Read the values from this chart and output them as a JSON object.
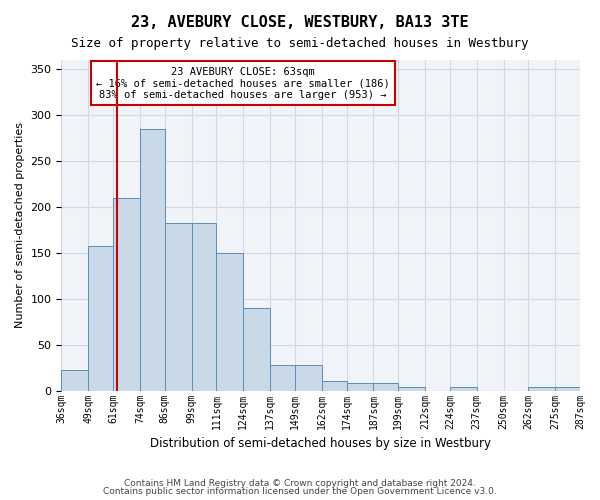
{
  "title1": "23, AVEBURY CLOSE, WESTBURY, BA13 3TE",
  "title2": "Size of property relative to semi-detached houses in Westbury",
  "xlabel": "Distribution of semi-detached houses by size in Westbury",
  "ylabel": "Number of semi-detached properties",
  "annotation_line1": "23 AVEBURY CLOSE: 63sqm",
  "annotation_line2": "← 16% of semi-detached houses are smaller (186)",
  "annotation_line3": "83% of semi-detached houses are larger (953) →",
  "footer1": "Contains HM Land Registry data © Crown copyright and database right 2024.",
  "footer2": "Contains public sector information licensed under the Open Government Licence v3.0.",
  "property_size": 63,
  "bar_color": "#c9d9e8",
  "bar_edge_color": "#5b8db8",
  "vline_color": "#cc0000",
  "annotation_box_color": "#cc0000",
  "grid_color": "#d0d8e8",
  "background_color": "#f0f4f8",
  "bin_edges": [
    36,
    49,
    61,
    74,
    86,
    99,
    111,
    124,
    137,
    149,
    162,
    174,
    187,
    199,
    212,
    224,
    237,
    250,
    262,
    275,
    287
  ],
  "bin_labels": [
    "36sqm",
    "49sqm",
    "61sqm",
    "74sqm",
    "86sqm",
    "99sqm",
    "111sqm",
    "124sqm",
    "137sqm",
    "149sqm",
    "162sqm",
    "174sqm",
    "187sqm",
    "199sqm",
    "212sqm",
    "224sqm",
    "237sqm",
    "250sqm",
    "262sqm",
    "275sqm",
    "287sqm"
  ],
  "bar_heights": [
    22,
    157,
    210,
    285,
    183,
    183,
    150,
    90,
    28,
    28,
    10,
    8,
    8,
    4,
    0,
    4,
    0,
    0,
    4,
    4
  ],
  "ylim": [
    0,
    360
  ],
  "yticks": [
    0,
    50,
    100,
    150,
    200,
    250,
    300,
    350
  ]
}
